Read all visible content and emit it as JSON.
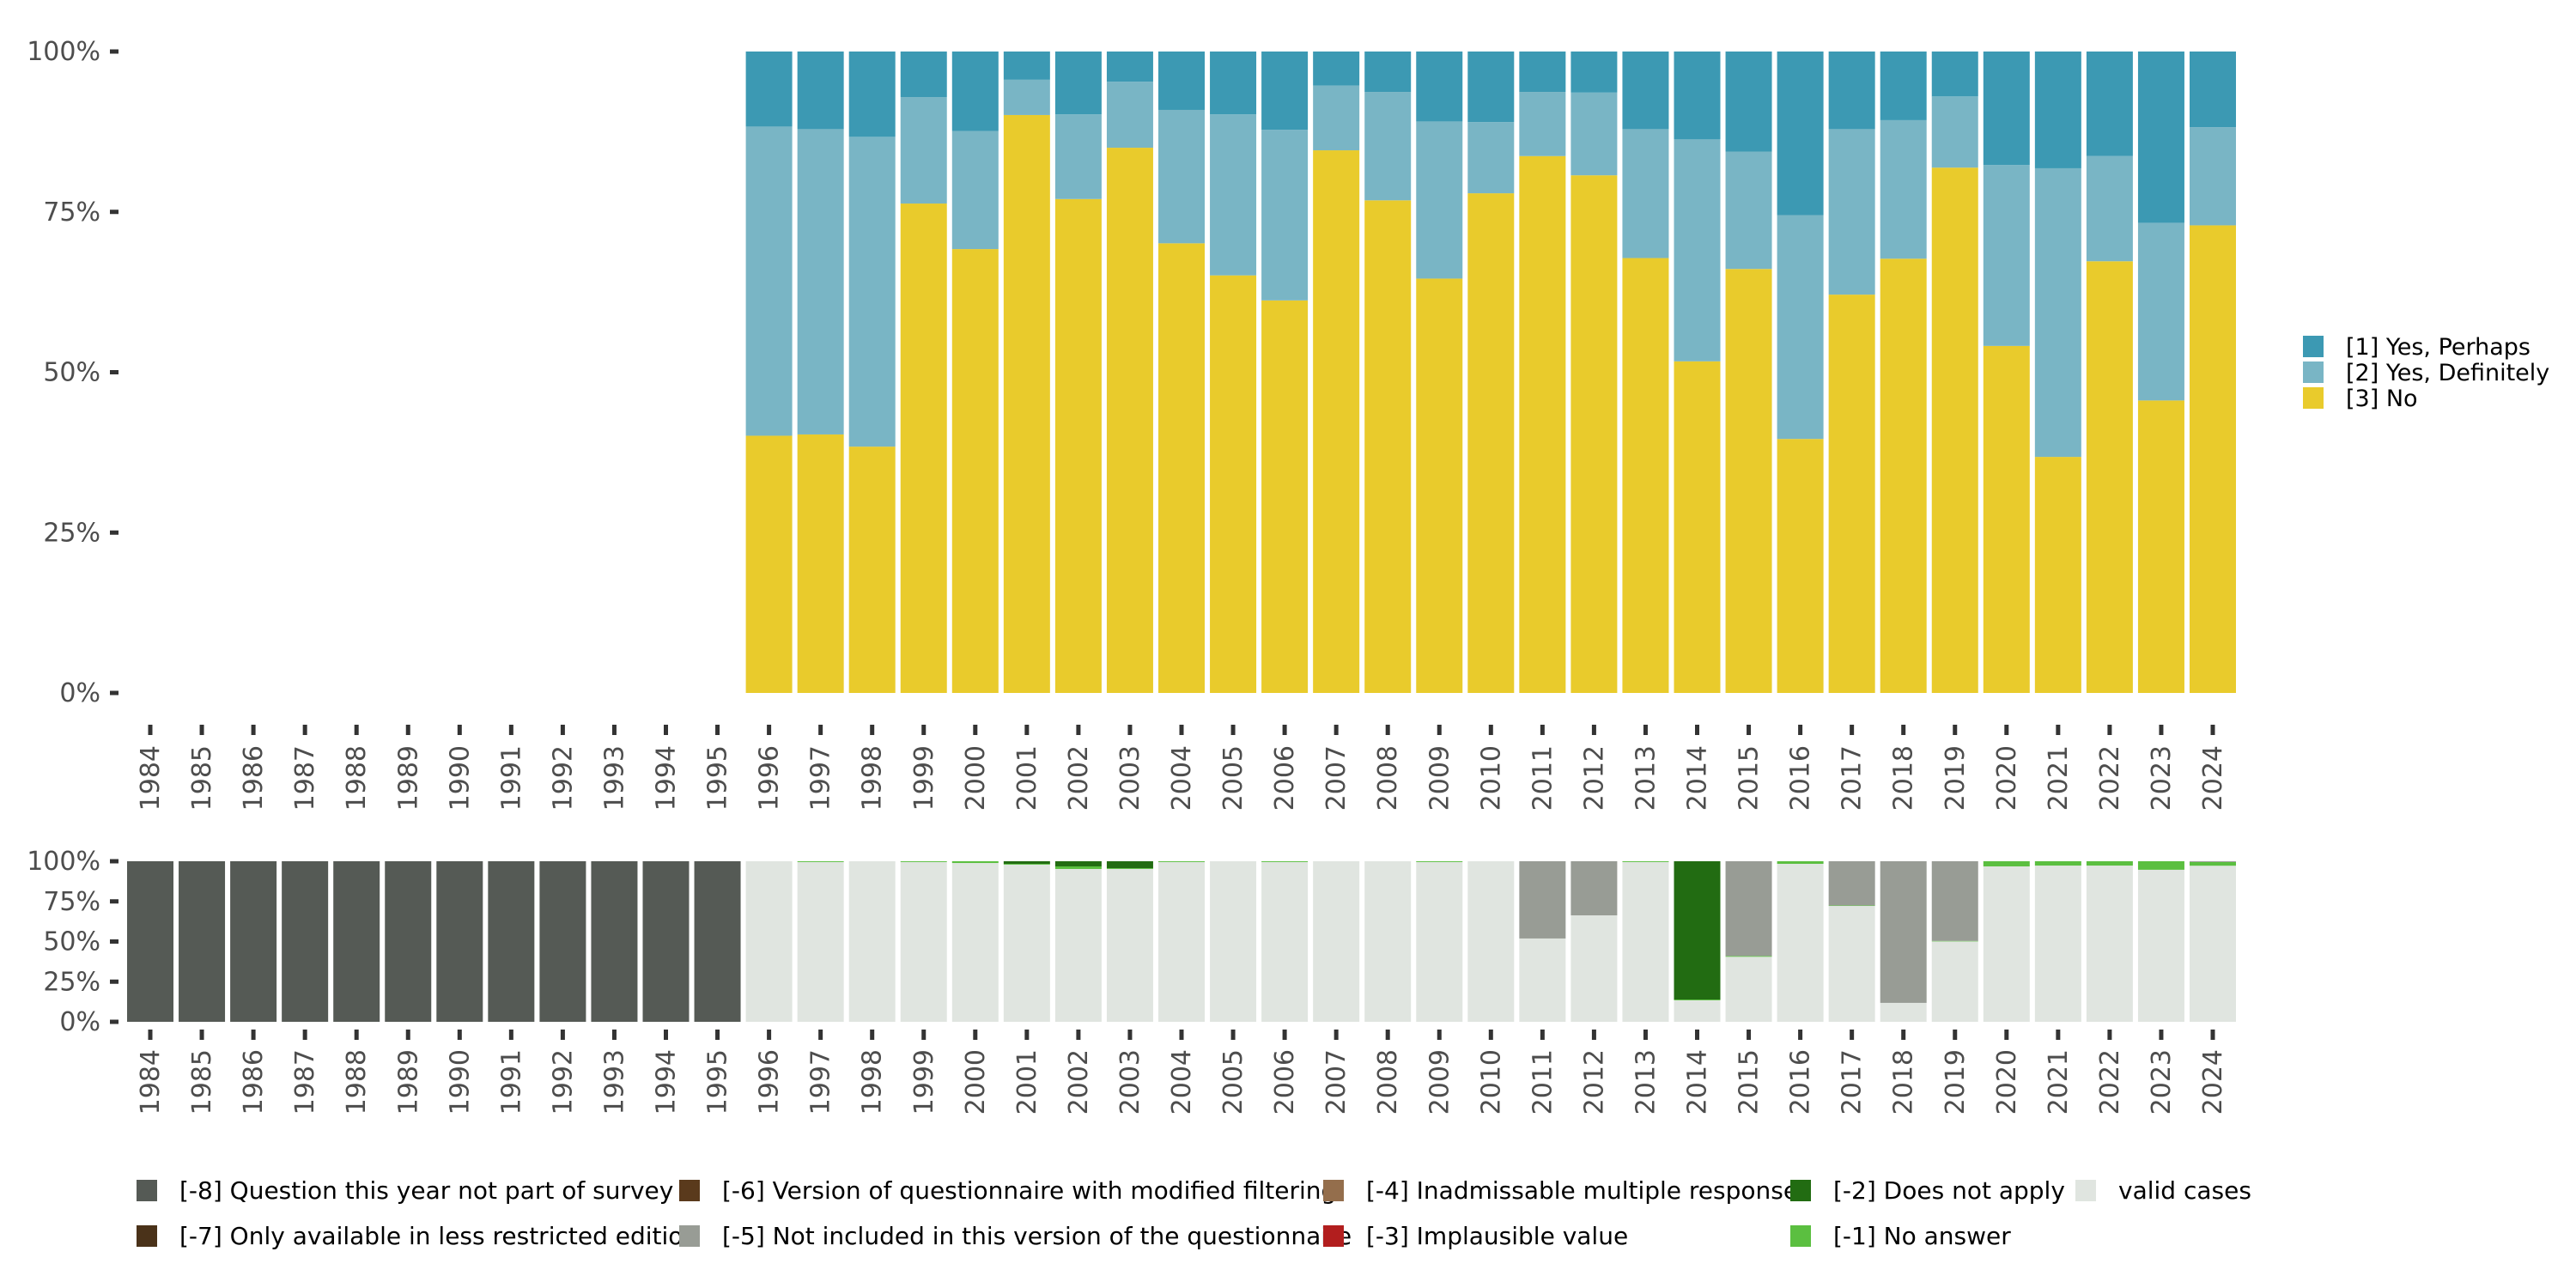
{
  "chart_data": [
    {
      "type": "bar",
      "stacked": true,
      "title": "",
      "xlabel": "",
      "ylabel": "",
      "ylim": [
        0,
        100
      ],
      "y_ticks": [
        "0%",
        "25%",
        "50%",
        "75%",
        "100%"
      ],
      "y_tick_values": [
        0,
        25,
        50,
        75,
        100
      ],
      "grid": false,
      "legend_position": "right",
      "categories": [
        "1984",
        "1985",
        "1986",
        "1987",
        "1988",
        "1989",
        "1990",
        "1991",
        "1992",
        "1993",
        "1994",
        "1995",
        "1996",
        "1997",
        "1998",
        "1999",
        "2000",
        "2001",
        "2002",
        "2003",
        "2004",
        "2005",
        "2006",
        "2007",
        "2008",
        "2009",
        "2010",
        "2011",
        "2012",
        "2013",
        "2014",
        "2015",
        "2016",
        "2017",
        "2018",
        "2019",
        "2020",
        "2021",
        "2022",
        "2023",
        "2024"
      ],
      "series": [
        {
          "name": "[3] No",
          "color": "#e9cb2c",
          "values": [
            null,
            null,
            null,
            null,
            null,
            null,
            null,
            null,
            null,
            null,
            null,
            null,
            40.1,
            40.3,
            38.4,
            76.3,
            69.2,
            90.1,
            77.0,
            85.0,
            70.1,
            65.1,
            61.2,
            84.6,
            76.8,
            64.6,
            77.9,
            83.7,
            80.7,
            67.8,
            51.7,
            66.1,
            39.6,
            62.1,
            67.7,
            81.9,
            54.1,
            36.8,
            67.3,
            45.6,
            72.9
          ]
        },
        {
          "name": "[2] Yes, Definitely",
          "color": "#79b5c5",
          "values": [
            null,
            null,
            null,
            null,
            null,
            null,
            null,
            null,
            null,
            null,
            null,
            null,
            48.2,
            47.6,
            48.3,
            16.6,
            18.4,
            5.5,
            13.2,
            10.3,
            20.8,
            25.1,
            26.6,
            10.1,
            16.9,
            24.5,
            11.1,
            10.0,
            12.9,
            20.1,
            34.6,
            18.3,
            34.9,
            25.8,
            21.6,
            11.1,
            28.2,
            45.0,
            16.4,
            27.7,
            15.3
          ]
        },
        {
          "name": "[1] Yes, Perhaps",
          "color": "#3c99b3",
          "values": [
            null,
            null,
            null,
            null,
            null,
            null,
            null,
            null,
            null,
            null,
            null,
            null,
            11.7,
            12.1,
            13.3,
            7.1,
            12.4,
            4.4,
            9.8,
            4.7,
            9.1,
            9.8,
            12.2,
            5.3,
            6.3,
            10.9,
            11.0,
            6.3,
            6.4,
            12.1,
            13.7,
            15.6,
            25.5,
            12.1,
            10.7,
            7.0,
            17.7,
            18.2,
            16.3,
            26.7,
            11.8
          ]
        }
      ],
      "legend": [
        {
          "label": "[1] Yes, Perhaps",
          "color": "#3c99b3"
        },
        {
          "label": "[2] Yes, Definitely",
          "color": "#79b5c5"
        },
        {
          "label": "[3] No",
          "color": "#e9cb2c"
        }
      ]
    },
    {
      "type": "bar",
      "stacked": true,
      "title": "",
      "xlabel": "",
      "ylabel": "",
      "ylim": [
        0,
        100
      ],
      "y_ticks": [
        "0%",
        "25%",
        "50%",
        "75%",
        "100%"
      ],
      "y_tick_values": [
        0,
        25,
        50,
        75,
        100
      ],
      "grid": false,
      "legend_position": "bottom",
      "categories": [
        "1984",
        "1985",
        "1986",
        "1987",
        "1988",
        "1989",
        "1990",
        "1991",
        "1992",
        "1993",
        "1994",
        "1995",
        "1996",
        "1997",
        "1998",
        "1999",
        "2000",
        "2001",
        "2002",
        "2003",
        "2004",
        "2005",
        "2006",
        "2007",
        "2008",
        "2009",
        "2010",
        "2011",
        "2012",
        "2013",
        "2014",
        "2015",
        "2016",
        "2017",
        "2018",
        "2019",
        "2020",
        "2021",
        "2022",
        "2023",
        "2024"
      ],
      "series": [
        {
          "name": "valid cases",
          "color": "#e0e5e0",
          "values": [
            0,
            0,
            0,
            0,
            0,
            0,
            0,
            0,
            0,
            0,
            0,
            0,
            100,
            99.5,
            100,
            99.5,
            98.9,
            97.9,
            95.2,
            95.2,
            99.5,
            100,
            99.5,
            100,
            100,
            99.5,
            100,
            51.9,
            66.3,
            99.5,
            13.4,
            40.5,
            98.4,
            72.2,
            11.8,
            50.1,
            96.8,
            97.3,
            97.3,
            94.7,
            97.2
          ]
        },
        {
          "name": "[-1] No answer",
          "color": "#5bbf40",
          "values": [
            0,
            0,
            0,
            0,
            0,
            0,
            0,
            0,
            0,
            0,
            0,
            0,
            0,
            0.5,
            0,
            0.5,
            1.1,
            0.5,
            1.6,
            0.5,
            0.5,
            0,
            0.5,
            0,
            0,
            0.5,
            0,
            0,
            0,
            0.5,
            0.5,
            0.5,
            1.6,
            0.3,
            0,
            0.3,
            3.2,
            2.7,
            2.7,
            5.3,
            2.3
          ]
        },
        {
          "name": "[-2] Does not apply",
          "color": "#226c12",
          "values": [
            0,
            0,
            0,
            0,
            0,
            0,
            0,
            0,
            0,
            0,
            0,
            0,
            0,
            0,
            0,
            0,
            0,
            1.6,
            3.2,
            4.3,
            0,
            0,
            0,
            0,
            0,
            0,
            0,
            0,
            0,
            0,
            86.1,
            0,
            0,
            0,
            0,
            0,
            0,
            0,
            0,
            0,
            0
          ]
        },
        {
          "name": "[-3] Implausible value",
          "color": "#b21e1e",
          "values": [
            0,
            0,
            0,
            0,
            0,
            0,
            0,
            0,
            0,
            0,
            0,
            0,
            0,
            0,
            0,
            0,
            0,
            0,
            0,
            0,
            0,
            0,
            0,
            0,
            0,
            0,
            0,
            0,
            0,
            0,
            0,
            0,
            0,
            0,
            0,
            0,
            0,
            0,
            0,
            0,
            0
          ]
        },
        {
          "name": "[-4] Inadmissable multiple response",
          "color": "#946e4c",
          "values": [
            0,
            0,
            0,
            0,
            0,
            0,
            0,
            0,
            0,
            0,
            0,
            0,
            0,
            0,
            0,
            0,
            0,
            0,
            0,
            0,
            0,
            0,
            0,
            0,
            0,
            0,
            0,
            0,
            0,
            0,
            0,
            0,
            0,
            0,
            0,
            0,
            0,
            0,
            0,
            0,
            0
          ]
        },
        {
          "name": "[-5] Not included in this version of the questionnaire",
          "color": "#989c95",
          "values": [
            0,
            0,
            0,
            0,
            0,
            0,
            0,
            0,
            0,
            0,
            0,
            0,
            0,
            0,
            0,
            0,
            0,
            0,
            0,
            0,
            0,
            0,
            0,
            0,
            0,
            0,
            0,
            48.1,
            33.7,
            0,
            0,
            59.0,
            0,
            27.5,
            88.2,
            49.6,
            0,
            0,
            0,
            0,
            0.5
          ]
        },
        {
          "name": "[-6] Version of questionnaire with modified filtering",
          "color": "#5a3a1c",
          "values": [
            0,
            0,
            0,
            0,
            0,
            0,
            0,
            0,
            0,
            0,
            0,
            0,
            0,
            0,
            0,
            0,
            0,
            0,
            0,
            0,
            0,
            0,
            0,
            0,
            0,
            0,
            0,
            0,
            0,
            0,
            0,
            0,
            0,
            0,
            0,
            0,
            0,
            0,
            0,
            0,
            0
          ]
        },
        {
          "name": "[-7] Only available in less restricted edition",
          "color": "#4a3219",
          "values": [
            0,
            0,
            0,
            0,
            0,
            0,
            0,
            0,
            0,
            0,
            0,
            0,
            0,
            0,
            0,
            0,
            0,
            0,
            0,
            0,
            0,
            0,
            0,
            0,
            0,
            0,
            0,
            0,
            0,
            0,
            0,
            0,
            0,
            0,
            0,
            0,
            0,
            0,
            0,
            0,
            0
          ]
        },
        {
          "name": "[-8] Question this year not part of survey",
          "color": "#555a55",
          "values": [
            100,
            100,
            100,
            100,
            100,
            100,
            100,
            100,
            100,
            100,
            100,
            100,
            0,
            0,
            0,
            0,
            0,
            0,
            0,
            0,
            0,
            0,
            0,
            0,
            0,
            0,
            0,
            0,
            0,
            0,
            0,
            0,
            0,
            0,
            0,
            0,
            0,
            0,
            0,
            0,
            0
          ]
        }
      ],
      "legend": [
        {
          "label": "[-8] Question this year not part of survey",
          "color": "#555a55"
        },
        {
          "label": "[-6] Version of questionnaire with modified filtering",
          "color": "#5a3a1c"
        },
        {
          "label": "[-4] Inadmissable multiple response",
          "color": "#946e4c"
        },
        {
          "label": "[-2] Does not apply",
          "color": "#226c12"
        },
        {
          "label": "valid cases",
          "color": "#e0e5e0"
        },
        {
          "label": "[-7] Only available in less restricted edition",
          "color": "#4a3219"
        },
        {
          "label": "[-5] Not included in this version of the questionnaire",
          "color": "#989c95"
        },
        {
          "label": "[-3] Implausible value",
          "color": "#b21e1e"
        },
        {
          "label": "[-1] No answer",
          "color": "#5bbf40"
        }
      ]
    }
  ]
}
